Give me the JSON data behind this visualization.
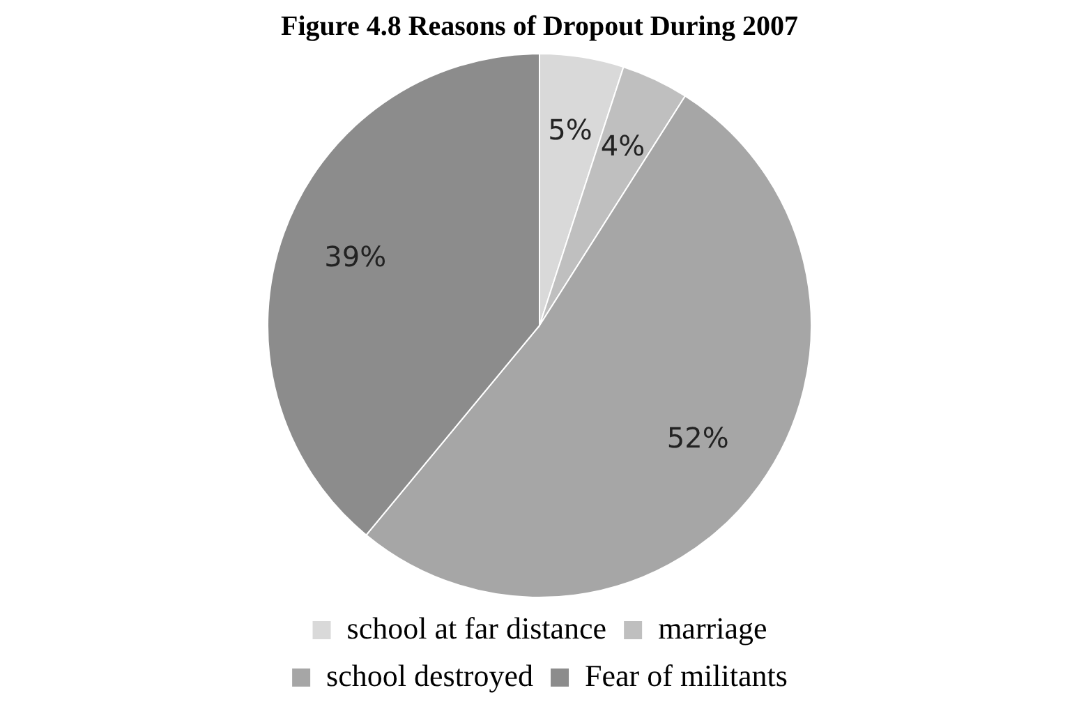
{
  "chart_data": {
    "type": "pie",
    "title": "Figure 4.8 Reasons of Dropout During 2007",
    "categories": [
      "school at far distance",
      "marriage",
      "school destroyed",
      "Fear of militants"
    ],
    "values": [
      5,
      4,
      52,
      39
    ],
    "colors": [
      "#d9d9d9",
      "#bfbfbf",
      "#a6a6a6",
      "#8c8c8c"
    ],
    "value_labels": [
      "5%",
      "4%",
      "52%",
      "39%"
    ],
    "legend": "bottom"
  }
}
